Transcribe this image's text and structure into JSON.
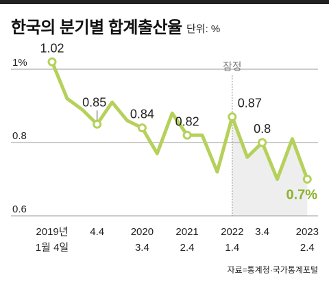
{
  "title": "한국의 분기별 합계출산율",
  "unit": "단위: %",
  "source": "자료=통계청·국가통계포털",
  "colors": {
    "line": "#b5d15b",
    "marker_fill": "#ffffff",
    "grid": "#9a9a9a",
    "shade": "#eeeeee",
    "highlight": "#8bb12e",
    "text": "#222222",
    "muted": "#777777"
  },
  "chart_data": {
    "type": "line",
    "title": "한국의 분기별 합계출산율",
    "ylabel": "단위: %",
    "ylim": [
      0.6,
      1.06
    ],
    "y_ticks": [
      {
        "value": 1.0,
        "label": "1%"
      },
      {
        "value": 0.8,
        "label": "0.8"
      },
      {
        "value": 0.6,
        "label": "0.6"
      }
    ],
    "x_labels": [
      {
        "index": 0,
        "line1": "2019년",
        "line2": "1월 4일"
      },
      {
        "index": 3,
        "line1": "4.4",
        "line2": ""
      },
      {
        "index": 6,
        "line1": "2020",
        "line2": "3.4"
      },
      {
        "index": 9,
        "line1": "2021",
        "line2": "2.4"
      },
      {
        "index": 12,
        "line1": "2022",
        "line2": "1.4"
      },
      {
        "index": 14,
        "line1": "3.4",
        "line2": ""
      },
      {
        "index": 17,
        "line1": "2023",
        "line2": "2.4"
      }
    ],
    "series": [
      {
        "values": [
          1.02,
          0.92,
          0.89,
          0.85,
          0.91,
          0.86,
          0.84,
          0.77,
          0.88,
          0.82,
          0.82,
          0.72,
          0.87,
          0.76,
          0.8,
          0.7,
          0.81,
          0.7
        ]
      }
    ],
    "markers": [
      0,
      3,
      6,
      9,
      12,
      14,
      17
    ],
    "data_labels": [
      {
        "index": 0,
        "text": "1.02",
        "highlight": false
      },
      {
        "index": 3,
        "text": "0.85",
        "highlight": false
      },
      {
        "index": 6,
        "text": "0.84",
        "highlight": false
      },
      {
        "index": 9,
        "text": "0.82",
        "highlight": false
      },
      {
        "index": 12,
        "text": "0.87",
        "highlight": false
      },
      {
        "index": 14,
        "text": "0.8",
        "highlight": false
      },
      {
        "index": 17,
        "text": "0.7%",
        "highlight": true
      }
    ],
    "provisional": {
      "start_index": 12,
      "label": "잠정"
    },
    "grid": true
  }
}
